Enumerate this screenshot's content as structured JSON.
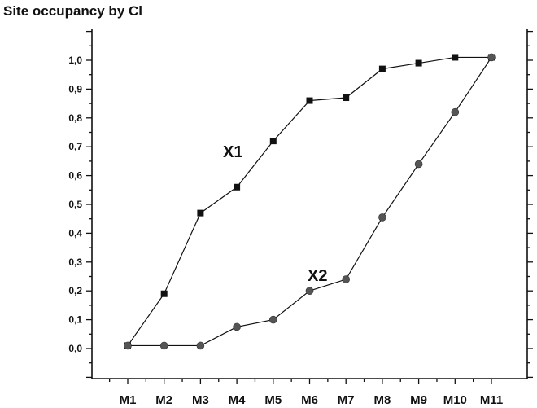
{
  "chart_data": {
    "type": "line",
    "title": "Site occupancy by Cl",
    "xlabel": "",
    "ylabel": "",
    "categories": [
      "M1",
      "M2",
      "M3",
      "M4",
      "M5",
      "M6",
      "M7",
      "M8",
      "M9",
      "M10",
      "M11"
    ],
    "ylim": [
      -0.1,
      1.1
    ],
    "yticks": [
      "0,0",
      "0,1",
      "0,2",
      "0,3",
      "0,4",
      "0,5",
      "0,6",
      "0,7",
      "0,8",
      "0,9",
      "1,0"
    ],
    "grid": false,
    "legend": "none",
    "series": [
      {
        "name": "X1",
        "marker": "square",
        "color": "#111111",
        "values": [
          0.01,
          0.19,
          0.47,
          0.56,
          0.72,
          0.86,
          0.87,
          0.97,
          0.99,
          1.01,
          1.01
        ]
      },
      {
        "name": "X2",
        "marker": "circle",
        "color": "#555555",
        "values": [
          0.01,
          0.01,
          0.01,
          0.075,
          0.1,
          0.2,
          0.24,
          0.455,
          0.64,
          0.82,
          1.01
        ]
      }
    ]
  }
}
